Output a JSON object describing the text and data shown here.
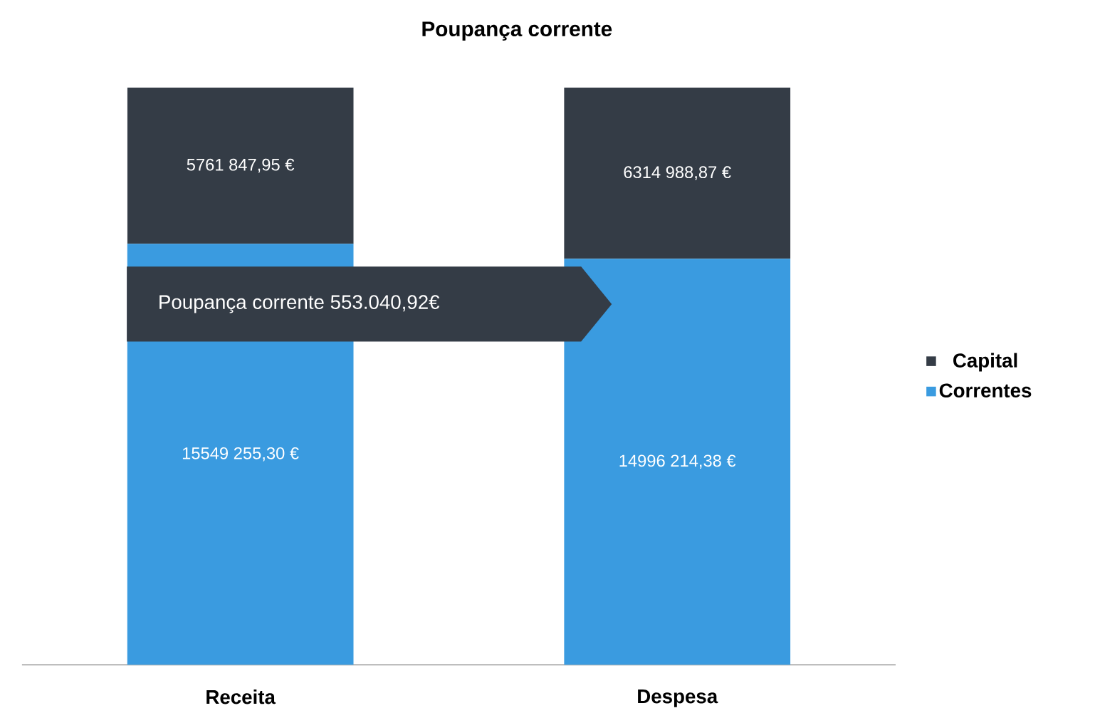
{
  "chart_data": {
    "type": "bar",
    "title": "Poupança corrente",
    "categories": [
      "Receita",
      "Despesa"
    ],
    "stacked": true,
    "legend": "right",
    "series": [
      {
        "name": "Correntes",
        "color": "#3a9be0",
        "values": [
          15549255.3,
          14996214.38
        ],
        "value_labels": [
          "15549 255,30 €",
          "14996 214,38 €"
        ]
      },
      {
        "name": "Capital",
        "color": "#343c46",
        "values": [
          5761847.95,
          6314988.87
        ],
        "value_labels": [
          "5761 847,95 €",
          "6314 988,87 €"
        ]
      }
    ],
    "annotations": [
      "Poupança corrente 553.040,92€"
    ]
  }
}
